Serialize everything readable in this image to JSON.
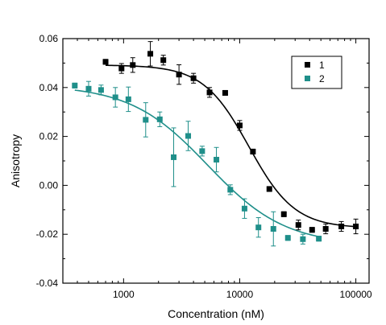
{
  "chart_data": {
    "type": "scatter",
    "xlabel": "Concentration (nM)",
    "ylabel": "Anisotropy",
    "x_scale": "log",
    "xlim": [
      300,
      130000
    ],
    "ylim": [
      -0.04,
      0.06
    ],
    "x_ticks": [
      1000,
      10000,
      100000
    ],
    "x_tick_labels": [
      "1000",
      "10000",
      "100000"
    ],
    "y_ticks": [
      -0.04,
      -0.02,
      0.0,
      0.02,
      0.04,
      0.06
    ],
    "y_tick_labels": [
      "-0.04",
      "-0.02",
      "0.00",
      "0.02",
      "0.04",
      "0.06"
    ],
    "grid": false,
    "legend_position": "top-right",
    "series": [
      {
        "name": "1",
        "color": "#000000",
        "points": [
          {
            "x": 700,
            "y": 0.0505,
            "err": 0.001
          },
          {
            "x": 960,
            "y": 0.0478,
            "err": 0.002
          },
          {
            "x": 1200,
            "y": 0.0492,
            "err": 0.003
          },
          {
            "x": 1700,
            "y": 0.0538,
            "err": 0.005
          },
          {
            "x": 2200,
            "y": 0.0512,
            "err": 0.002
          },
          {
            "x": 3000,
            "y": 0.0453,
            "err": 0.004
          },
          {
            "x": 4000,
            "y": 0.0438,
            "err": 0.002
          },
          {
            "x": 5500,
            "y": 0.038,
            "err": 0.002
          },
          {
            "x": 7500,
            "y": 0.0378,
            "err": 0.001
          },
          {
            "x": 10000,
            "y": 0.0245,
            "err": 0.002
          },
          {
            "x": 13000,
            "y": 0.0138,
            "err": 0.001
          },
          {
            "x": 18000,
            "y": -0.0015,
            "err": 0.001
          },
          {
            "x": 24000,
            "y": -0.0118,
            "err": 0.001
          },
          {
            "x": 32000,
            "y": -0.0162,
            "err": 0.002
          },
          {
            "x": 42000,
            "y": -0.0182,
            "err": 0.001
          },
          {
            "x": 55000,
            "y": -0.0178,
            "err": 0.002
          },
          {
            "x": 75000,
            "y": -0.0168,
            "err": 0.002
          },
          {
            "x": 100000,
            "y": -0.0168,
            "err": 0.003
          }
        ],
        "fit": {
          "top": 0.0492,
          "bottom": -0.0175,
          "ec50": 12000,
          "hill": 2.2
        }
      },
      {
        "name": "2",
        "color": "#1f8f8a",
        "points": [
          {
            "x": 380,
            "y": 0.0408,
            "err": 0.001
          },
          {
            "x": 500,
            "y": 0.0395,
            "err": 0.003
          },
          {
            "x": 640,
            "y": 0.039,
            "err": 0.002
          },
          {
            "x": 850,
            "y": 0.036,
            "err": 0.004
          },
          {
            "x": 1100,
            "y": 0.0352,
            "err": 0.005
          },
          {
            "x": 1550,
            "y": 0.0268,
            "err": 0.007
          },
          {
            "x": 2050,
            "y": 0.027,
            "err": 0.003
          },
          {
            "x": 2700,
            "y": 0.0115,
            "err": 0.012
          },
          {
            "x": 3600,
            "y": 0.0202,
            "err": 0.006
          },
          {
            "x": 4750,
            "y": 0.014,
            "err": 0.002
          },
          {
            "x": 6300,
            "y": 0.0105,
            "err": 0.005
          },
          {
            "x": 8300,
            "y": -0.0018,
            "err": 0.002
          },
          {
            "x": 11000,
            "y": -0.0095,
            "err": 0.004
          },
          {
            "x": 14500,
            "y": -0.0172,
            "err": 0.004
          },
          {
            "x": 19500,
            "y": -0.0178,
            "err": 0.007
          },
          {
            "x": 26000,
            "y": -0.0215,
            "err": 0.001
          },
          {
            "x": 35000,
            "y": -0.022,
            "err": 0.002
          },
          {
            "x": 48000,
            "y": -0.0218,
            "err": 0.001
          }
        ],
        "fit": {
          "top": 0.041,
          "bottom": -0.0245,
          "ec50": 5300,
          "hill": 1.3
        }
      }
    ]
  }
}
